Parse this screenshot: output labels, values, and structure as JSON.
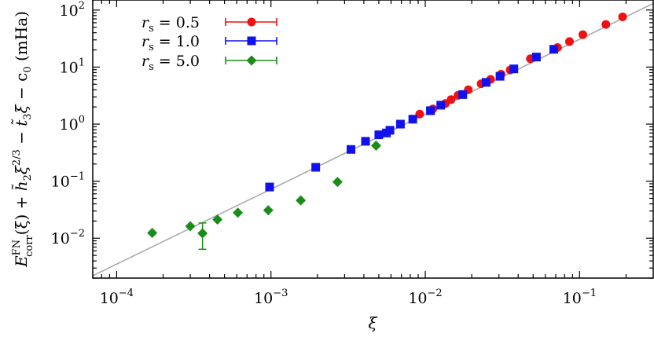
{
  "chart_data": {
    "type": "scatter",
    "title": "",
    "xlabel": "ξ",
    "ylabel": "E_corr^FN(ξ) + h̃₂ξ^(2/3) − t̃₃ξ − c₀ (mHa)",
    "ylabel_parts": {
      "E": "E",
      "sup_FN": "FN",
      "sub_corr": "corr",
      "mid": "(ξ) + ",
      "h": "h̃",
      "sub_2": "2",
      "xi1": "ξ",
      "sup_23": "2/3",
      "minus": " − ",
      "t": "t̃",
      "sub_3": "3",
      "xi2": "ξ",
      "rest": " − c",
      "sub_0": "0",
      "unit": " (mHa)"
    },
    "x_scale": "log",
    "y_scale": "log",
    "xlim": [
      7e-05,
      0.3
    ],
    "ylim": [
      0.002,
      150
    ],
    "grid": false,
    "legend_position": "top-left",
    "x_ticks": [
      {
        "value": 0.0001,
        "base": "10",
        "exp": "−4"
      },
      {
        "value": 0.001,
        "base": "10",
        "exp": "−3"
      },
      {
        "value": 0.01,
        "base": "10",
        "exp": "−2"
      },
      {
        "value": 0.1,
        "base": "10",
        "exp": "−1"
      }
    ],
    "y_ticks": [
      {
        "value": 0.01,
        "base": "10",
        "exp": "−2"
      },
      {
        "value": 0.1,
        "base": "10",
        "exp": "−1"
      },
      {
        "value": 1,
        "base": "10",
        "exp": "0"
      },
      {
        "value": 10,
        "base": "10",
        "exp": "1"
      },
      {
        "value": 100,
        "base": "10",
        "exp": "2"
      }
    ],
    "fit_line": {
      "color": "#aaaaaa",
      "points": [
        [
          7e-05,
          0.0022
        ],
        [
          0.3,
          130
        ]
      ]
    },
    "series": [
      {
        "name": "r_s = 0.5",
        "label_var": "r",
        "label_sub": "s",
        "label_eq": " = 0.5",
        "color": "#ee1111",
        "marker": "circle",
        "points": [
          {
            "x": 0.0092,
            "y": 1.5
          },
          {
            "x": 0.0112,
            "y": 1.85
          },
          {
            "x": 0.0135,
            "y": 2.3
          },
          {
            "x": 0.0147,
            "y": 2.7
          },
          {
            "x": 0.0163,
            "y": 3.2
          },
          {
            "x": 0.019,
            "y": 4.0
          },
          {
            "x": 0.023,
            "y": 5.1
          },
          {
            "x": 0.0265,
            "y": 6.1
          },
          {
            "x": 0.031,
            "y": 7.5
          },
          {
            "x": 0.0355,
            "y": 8.9
          },
          {
            "x": 0.048,
            "y": 14.0
          },
          {
            "x": 0.072,
            "y": 22.0
          },
          {
            "x": 0.086,
            "y": 28.0
          },
          {
            "x": 0.105,
            "y": 37.0
          },
          {
            "x": 0.148,
            "y": 56.0
          },
          {
            "x": 0.19,
            "y": 76.0
          }
        ]
      },
      {
        "name": "r_s = 1.0",
        "label_var": "r",
        "label_sub": "s",
        "label_eq": " = 1.0",
        "color": "#1111ee",
        "marker": "square",
        "points": [
          {
            "x": 0.00098,
            "y": 0.079
          },
          {
            "x": 0.00195,
            "y": 0.175
          },
          {
            "x": 0.0033,
            "y": 0.36
          },
          {
            "x": 0.0041,
            "y": 0.5
          },
          {
            "x": 0.005,
            "y": 0.65
          },
          {
            "x": 0.0056,
            "y": 0.7
          },
          {
            "x": 0.0059,
            "y": 0.78
          },
          {
            "x": 0.0069,
            "y": 1.0
          },
          {
            "x": 0.0083,
            "y": 1.22
          },
          {
            "x": 0.0108,
            "y": 1.72
          },
          {
            "x": 0.0126,
            "y": 2.15
          },
          {
            "x": 0.0175,
            "y": 3.3
          },
          {
            "x": 0.0248,
            "y": 5.4
          },
          {
            "x": 0.0305,
            "y": 6.9
          },
          {
            "x": 0.0375,
            "y": 9.3
          },
          {
            "x": 0.0525,
            "y": 15.0
          },
          {
            "x": 0.068,
            "y": 20.5
          }
        ]
      },
      {
        "name": "r_s = 5.0",
        "label_var": "r",
        "label_sub": "s",
        "label_eq": " = 5.0",
        "color": "#1a8c1a",
        "marker": "diamond",
        "points": [
          {
            "x": 0.00017,
            "y": 0.0124
          },
          {
            "x": 0.0003,
            "y": 0.0162
          },
          {
            "x": 0.00036,
            "y": 0.0122,
            "err": [
              0.0064,
              0.0185
            ]
          },
          {
            "x": 0.00045,
            "y": 0.0212
          },
          {
            "x": 0.00061,
            "y": 0.028
          },
          {
            "x": 0.00096,
            "y": 0.031
          },
          {
            "x": 0.00156,
            "y": 0.046
          },
          {
            "x": 0.0027,
            "y": 0.097
          },
          {
            "x": 0.0048,
            "y": 0.42
          }
        ]
      }
    ]
  }
}
